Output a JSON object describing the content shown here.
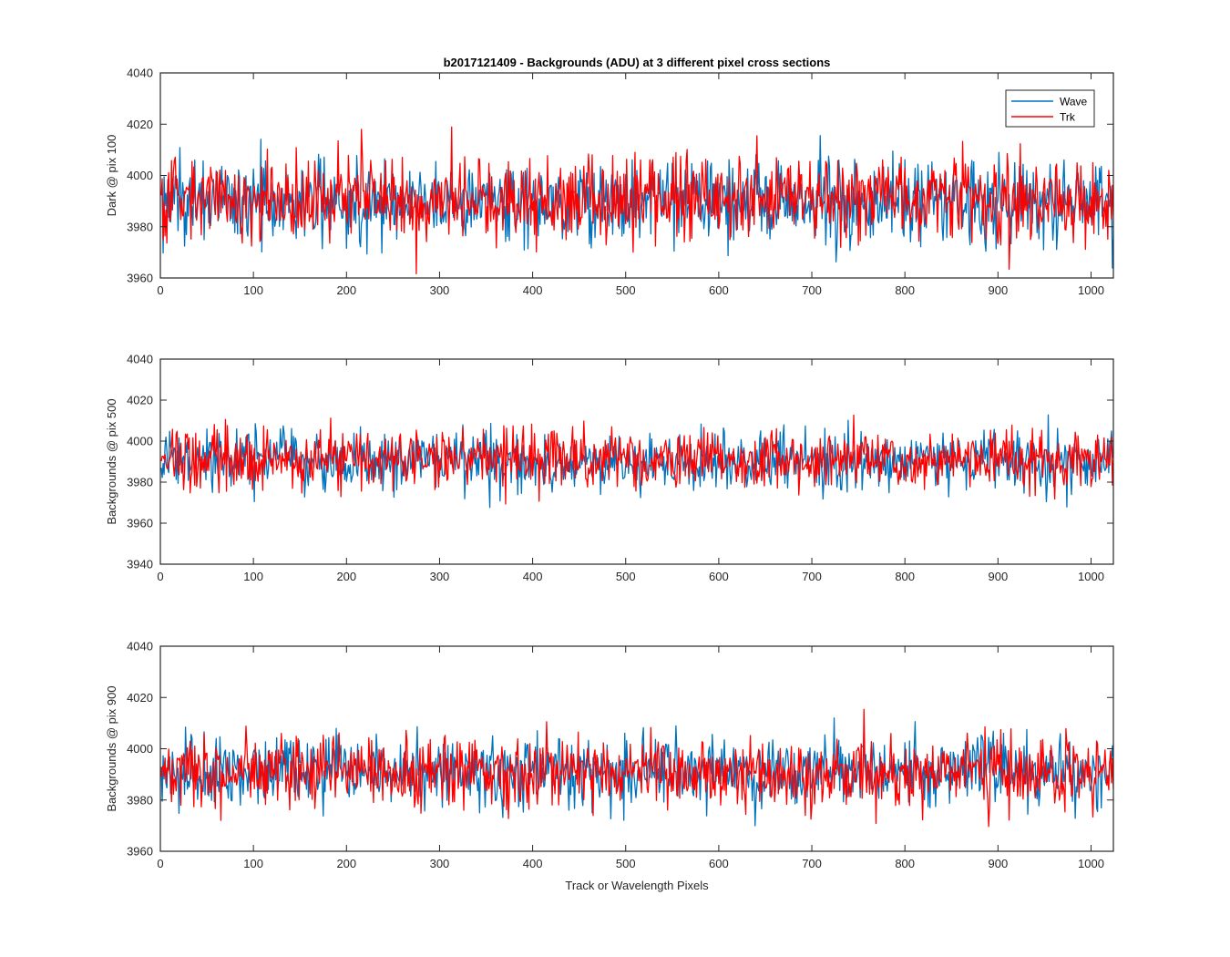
{
  "chart_data": {
    "type": "line",
    "title": "b2017121409 - Backgrounds (ADU) at 3 different pixel cross sections",
    "xlabel": "Track or Wavelength Pixels",
    "series_names": [
      "Wave",
      "Trk"
    ],
    "colors": {
      "Wave": "#0072BD",
      "Trk": "#FF0000"
    },
    "legend_position": "top-right",
    "x_points": 1024,
    "xlim": [
      0,
      1024
    ],
    "xticks": [
      0,
      100,
      200,
      300,
      400,
      500,
      600,
      700,
      800,
      900,
      1000
    ],
    "grid": false,
    "panels": [
      {
        "ylabel": "Dark @ pix 100",
        "ylim": [
          3960,
          4040
        ],
        "yticks": [
          3960,
          3980,
          4000,
          4020,
          4040
        ],
        "series": [
          {
            "name": "Wave",
            "mean": 3990,
            "std": 8,
            "min": 3960,
            "max": 4023
          },
          {
            "name": "Trk",
            "mean": 3991,
            "std": 8,
            "min": 3961,
            "max": 4020
          }
        ]
      },
      {
        "ylabel": "Backgrounds @ pix 500",
        "ylim": [
          3940,
          4040
        ],
        "yticks": [
          3940,
          3960,
          3980,
          4000,
          4020,
          4040
        ],
        "series": [
          {
            "name": "Wave",
            "mean": 3990,
            "std": 7,
            "min": 3956,
            "max": 4026
          },
          {
            "name": "Trk",
            "mean": 3991,
            "std": 7,
            "min": 3963,
            "max": 4013
          }
        ]
      },
      {
        "ylabel": "Backgrounds @ pix 900",
        "ylim": [
          3960,
          4040
        ],
        "yticks": [
          3960,
          3980,
          4000,
          4020,
          4040
        ],
        "series": [
          {
            "name": "Wave",
            "mean": 3991,
            "std": 7,
            "min": 3963,
            "max": 4025
          },
          {
            "name": "Trk",
            "mean": 3991,
            "std": 7,
            "min": 3963,
            "max": 4018
          }
        ]
      }
    ]
  }
}
